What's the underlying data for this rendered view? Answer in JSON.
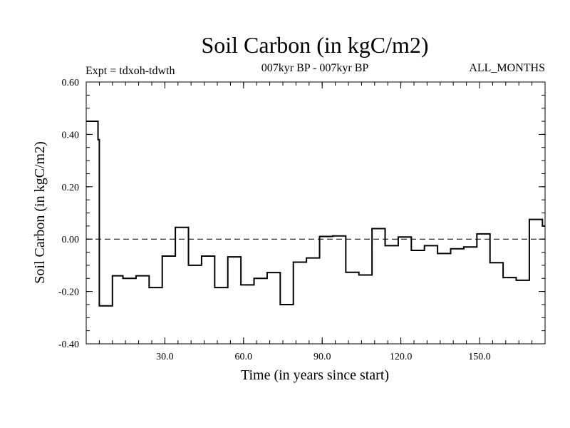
{
  "chart_data": {
    "type": "line",
    "style": "step",
    "title": "Soil Carbon (in kgC/m2)",
    "subtitle": "007kyr BP - 007kyr BP",
    "expt_label": "Expt = tdxoh-tdwth",
    "months_label": "ALL_MONTHS",
    "xlabel": "Time (in years since start)",
    "ylabel": "Soil Carbon (in kgC/m2)",
    "xlim": [
      0,
      175
    ],
    "ylim": [
      -0.4,
      0.6
    ],
    "xticks": [
      30,
      60,
      90,
      120,
      150
    ],
    "xtick_labels": [
      "30.0",
      "60.0",
      "90.0",
      "120.0",
      "150.0"
    ],
    "yticks": [
      -0.4,
      -0.2,
      0.0,
      0.2,
      0.4,
      0.6
    ],
    "ytick_labels": [
      "-0.40",
      "-0.20",
      "0.00",
      "0.20",
      "0.40",
      "0.60"
    ],
    "zero_line": 0.0,
    "series": [
      {
        "name": "tdxoh-tdwth",
        "color": "#000000",
        "points": [
          [
            0,
            0.45
          ],
          [
            4.5,
            0.45
          ],
          [
            4.5,
            0.38
          ],
          [
            5,
            0.38
          ],
          [
            5,
            -0.255
          ],
          [
            10,
            -0.255
          ],
          [
            10,
            -0.14
          ],
          [
            14,
            -0.14
          ],
          [
            14,
            -0.15
          ],
          [
            19,
            -0.15
          ],
          [
            19,
            -0.14
          ],
          [
            24,
            -0.14
          ],
          [
            24,
            -0.185
          ],
          [
            29,
            -0.185
          ],
          [
            29,
            -0.065
          ],
          [
            34,
            -0.065
          ],
          [
            34,
            0.045
          ],
          [
            39,
            0.045
          ],
          [
            39,
            -0.1
          ],
          [
            44,
            -0.1
          ],
          [
            44,
            -0.065
          ],
          [
            49,
            -0.065
          ],
          [
            49,
            -0.185
          ],
          [
            54,
            -0.185
          ],
          [
            54,
            -0.068
          ],
          [
            59,
            -0.068
          ],
          [
            59,
            -0.175
          ],
          [
            64,
            -0.175
          ],
          [
            64,
            -0.15
          ],
          [
            69,
            -0.15
          ],
          [
            69,
            -0.128
          ],
          [
            74,
            -0.128
          ],
          [
            74,
            -0.25
          ],
          [
            79,
            -0.25
          ],
          [
            79,
            -0.088
          ],
          [
            84,
            -0.088
          ],
          [
            84,
            -0.072
          ],
          [
            89,
            -0.072
          ],
          [
            89,
            0.01
          ],
          [
            94,
            0.01
          ],
          [
            94,
            0.012
          ],
          [
            99,
            0.012
          ],
          [
            99,
            -0.127
          ],
          [
            104,
            -0.127
          ],
          [
            104,
            -0.137
          ],
          [
            109,
            -0.137
          ],
          [
            109,
            0.04
          ],
          [
            114,
            0.04
          ],
          [
            114,
            -0.025
          ],
          [
            119,
            -0.025
          ],
          [
            119,
            0.008
          ],
          [
            124,
            0.008
          ],
          [
            124,
            -0.043
          ],
          [
            129,
            -0.043
          ],
          [
            129,
            -0.025
          ],
          [
            134,
            -0.025
          ],
          [
            134,
            -0.055
          ],
          [
            139,
            -0.055
          ],
          [
            139,
            -0.037
          ],
          [
            144,
            -0.037
          ],
          [
            144,
            -0.03
          ],
          [
            149,
            -0.03
          ],
          [
            149,
            0.02
          ],
          [
            154,
            0.02
          ],
          [
            154,
            -0.09
          ],
          [
            159,
            -0.09
          ],
          [
            159,
            -0.147
          ],
          [
            164,
            -0.147
          ],
          [
            164,
            -0.157
          ],
          [
            169,
            -0.157
          ],
          [
            169,
            0.075
          ],
          [
            174,
            0.075
          ],
          [
            174,
            0.05
          ],
          [
            175,
            0.05
          ]
        ]
      }
    ]
  }
}
